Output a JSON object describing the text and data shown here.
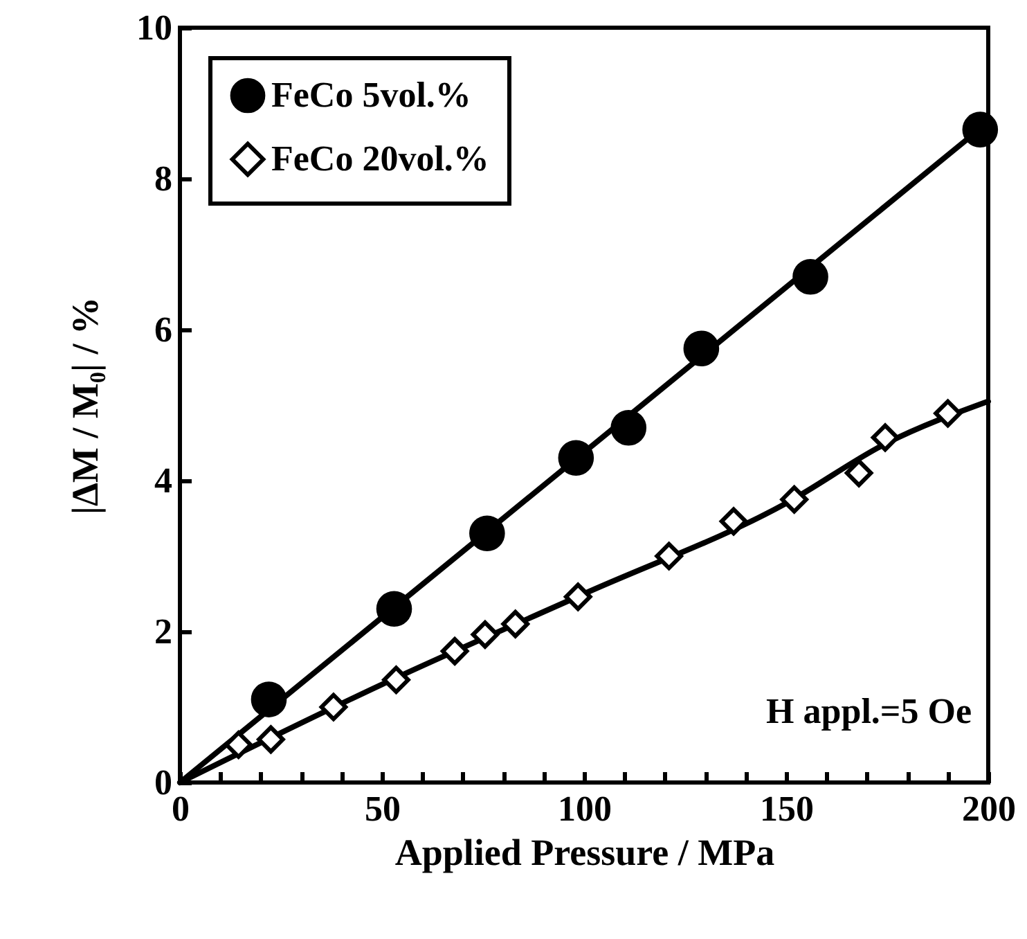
{
  "chart_data": {
    "type": "scatter",
    "xlabel": "Applied Pressure / MPa",
    "ylabel": "|ΔM / M₀| / %",
    "xlim": [
      0,
      200
    ],
    "ylim": [
      0,
      10
    ],
    "xticks": [
      0,
      {
        "value": 10,
        "label": null
      },
      {
        "value": 20,
        "label": null
      },
      {
        "value": 30,
        "label": null
      },
      {
        "value": 40,
        "label": null
      },
      50,
      {
        "value": 60,
        "label": null
      },
      {
        "value": 70,
        "label": null
      },
      {
        "value": 80,
        "label": null
      },
      {
        "value": 90,
        "label": null
      },
      100,
      {
        "value": 110,
        "label": null
      },
      {
        "value": 120,
        "label": null
      },
      {
        "value": 130,
        "label": null
      },
      {
        "value": 140,
        "label": null
      },
      150,
      {
        "value": 160,
        "label": null
      },
      {
        "value": 170,
        "label": null
      },
      {
        "value": 180,
        "label": null
      },
      {
        "value": 190,
        "label": null
      },
      200
    ],
    "yticks": [
      0,
      2,
      4,
      6,
      8,
      10
    ],
    "grid": false,
    "legend": "top left",
    "annotations": [
      "H appl.=5 Oe"
    ],
    "series": [
      {
        "type": "line",
        "color": "#000000",
        "x": [
          0,
          200
        ],
        "values": [
          0,
          8.75
        ]
      },
      {
        "type": "line",
        "color": "#000000",
        "x": [
          0,
          50,
          100,
          150,
          175,
          200
        ],
        "values": [
          0,
          1.3,
          2.5,
          3.7,
          4.5,
          5.05
        ]
      },
      {
        "name": "FeCo 5vol.%",
        "marker": "circle",
        "color": "#000000",
        "x": [
          22,
          53,
          76,
          98,
          111,
          129,
          156,
          198
        ],
        "values": [
          1.1,
          2.3,
          3.3,
          4.3,
          4.7,
          5.75,
          6.7,
          8.65
        ]
      },
      {
        "name": "FeCo 20vol.%",
        "marker": "diamond",
        "color": "#000000",
        "x": [
          14.5,
          22.5,
          38,
          53.5,
          68,
          75.5,
          83,
          98.5,
          121,
          137,
          152,
          168,
          174.5,
          190
        ],
        "values": [
          0.5,
          0.57,
          1.0,
          1.36,
          1.74,
          1.96,
          2.1,
          2.46,
          3.0,
          3.46,
          3.75,
          4.1,
          4.57,
          4.89
        ]
      }
    ]
  }
}
